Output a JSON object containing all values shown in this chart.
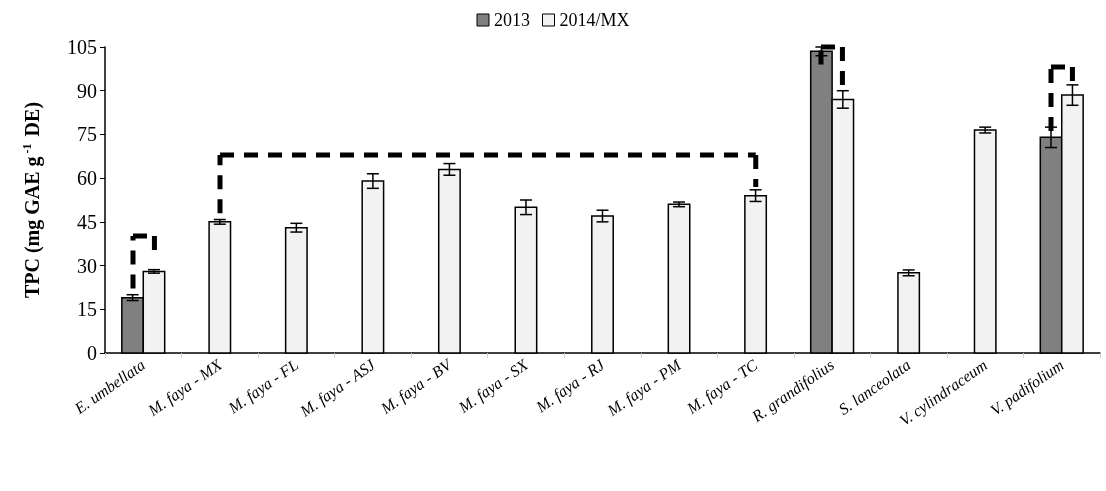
{
  "chart_data": {
    "type": "bar",
    "ylabel": "TPC (mg GAE g$^{-1}$ DE)",
    "categories": [
      "E. umbellata",
      "M. faya - MX",
      "M. faya - FL",
      "M. faya - ASJ",
      "M. faya - BV",
      "M. faya - SX",
      "M. faya - RJ",
      "M. faya - PM",
      "M. faya - TC",
      "R. grandifolius",
      "S. lanceolata",
      "V. cylindraceum",
      "V. padifolium"
    ],
    "series": [
      {
        "name": "2013",
        "color": "#808080",
        "values": [
          19,
          null,
          null,
          null,
          null,
          null,
          null,
          null,
          null,
          103.5,
          null,
          null,
          74
        ],
        "errors": [
          1,
          null,
          null,
          null,
          null,
          null,
          null,
          null,
          null,
          1.5,
          null,
          null,
          3.5
        ]
      },
      {
        "name": "2014/MX",
        "color": "#f2f2f2",
        "values": [
          28,
          45,
          43,
          59,
          63,
          50,
          47,
          51,
          54,
          87,
          27.5,
          76.5,
          88.5
        ],
        "errors": [
          0.6,
          0.8,
          1.5,
          2.5,
          2,
          2.5,
          2,
          0.8,
          2,
          3,
          1,
          1,
          3.5
        ]
      }
    ],
    "ylim": [
      0,
      105
    ],
    "yticks": [
      0,
      15,
      30,
      45,
      60,
      75,
      90,
      105
    ],
    "grid": false,
    "legend": "top"
  }
}
